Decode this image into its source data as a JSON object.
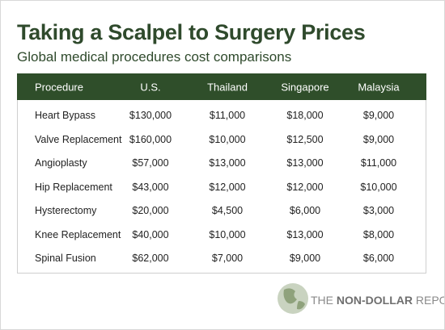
{
  "header": {
    "title": "Taking a Scalpel to Surgery Prices",
    "subtitle": "Global medical procedures cost comparisons"
  },
  "table": {
    "columns": [
      "Procedure",
      "U.S.",
      "Thailand",
      "Singapore",
      "Malaysia"
    ],
    "rows": [
      [
        "Heart Bypass",
        "$130,000",
        "$11,000",
        "$18,000",
        "$9,000"
      ],
      [
        "Valve Replacement",
        "$160,000",
        "$10,000",
        "$12,500",
        "$9,000"
      ],
      [
        "Angioplasty",
        "$57,000",
        "$13,000",
        "$13,000",
        "$11,000"
      ],
      [
        "Hip Replacement",
        "$43,000",
        "$12,000",
        "$12,000",
        "$10,000"
      ],
      [
        "Hysterectomy",
        "$20,000",
        "$4,500",
        "$6,000",
        "$3,000"
      ],
      [
        "Knee Replacement",
        "$40,000",
        "$10,000",
        "$13,000",
        "$8,000"
      ],
      [
        "Spinal Fusion",
        "$62,000",
        "$7,000",
        "$9,000",
        "$6,000"
      ]
    ]
  },
  "footer": {
    "brand_prefix": "THE",
    "brand_name": "NON-DOLLAR",
    "brand_suffix": "REPORT"
  }
}
